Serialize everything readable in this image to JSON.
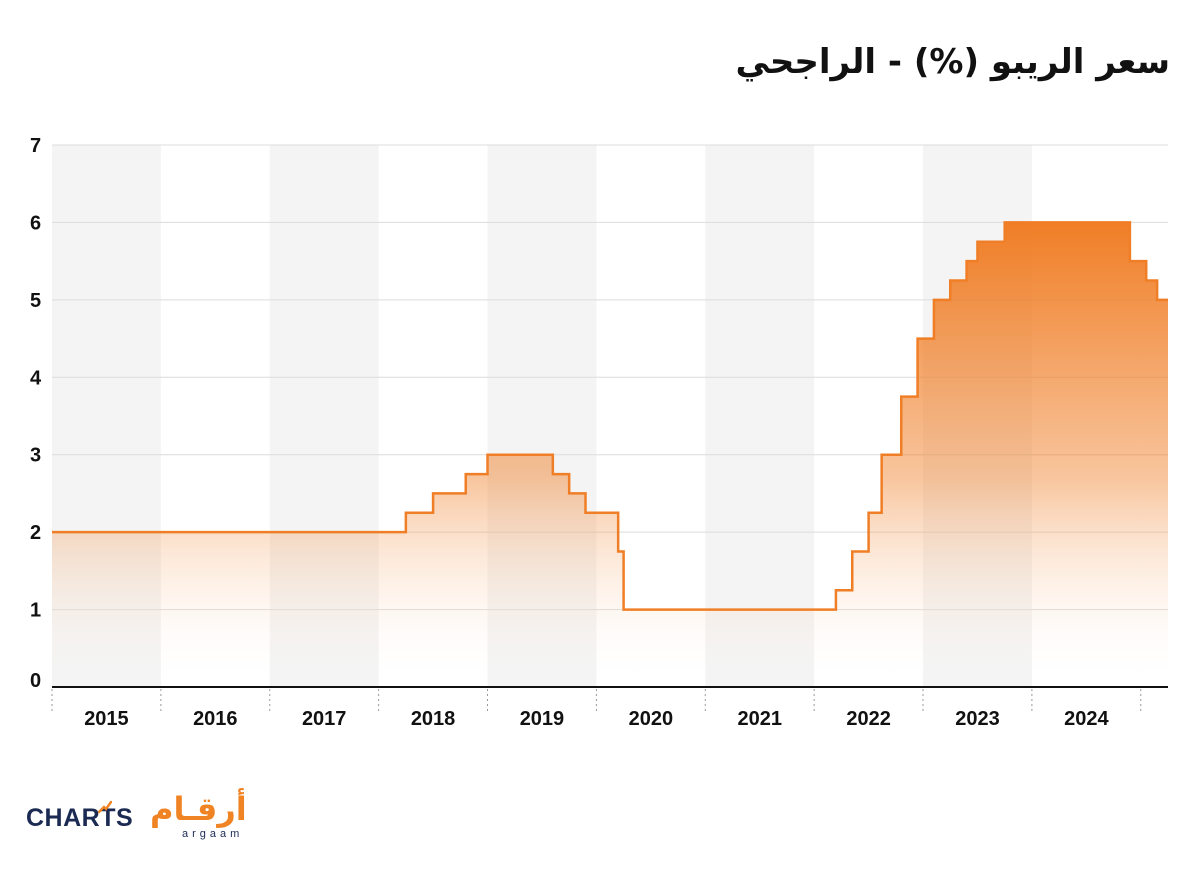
{
  "title": "سعر الريبو (%) - الراجحي",
  "logo": {
    "charts_text": "CHARTS",
    "arabic_text": "أرقـام",
    "sub_text": "argaam"
  },
  "colors": {
    "line": "#f07e26",
    "fill_top": "#f07e26",
    "fill_bottom": "#ffffff",
    "band": "#f4f4f4",
    "grid": "#dcdcdc",
    "axis": "#111111"
  },
  "chart_data": {
    "type": "area",
    "step": true,
    "ylim": [
      0,
      7
    ],
    "xlim": [
      2015.0,
      2025.25
    ],
    "yticks": [
      0,
      1,
      2,
      3,
      4,
      5,
      6,
      7
    ],
    "categories": [
      "2015",
      "2016",
      "2017",
      "2018",
      "2019",
      "2020",
      "2021",
      "2022",
      "2023",
      "2024"
    ],
    "grid": true,
    "series": [
      {
        "points": [
          [
            2015.0,
            2.0
          ],
          [
            2018.25,
            2.25
          ],
          [
            2018.5,
            2.5
          ],
          [
            2018.8,
            2.75
          ],
          [
            2019.0,
            3.0
          ],
          [
            2019.6,
            2.75
          ],
          [
            2019.75,
            2.5
          ],
          [
            2019.9,
            2.25
          ],
          [
            2020.2,
            1.75
          ],
          [
            2020.25,
            1.0
          ],
          [
            2022.2,
            1.25
          ],
          [
            2022.35,
            1.75
          ],
          [
            2022.5,
            2.25
          ],
          [
            2022.62,
            3.0
          ],
          [
            2022.8,
            3.75
          ],
          [
            2022.95,
            4.5
          ],
          [
            2023.1,
            5.0
          ],
          [
            2023.25,
            5.25
          ],
          [
            2023.4,
            5.5
          ],
          [
            2023.5,
            5.75
          ],
          [
            2023.75,
            6.0
          ],
          [
            2024.9,
            5.5
          ],
          [
            2025.05,
            5.25
          ],
          [
            2025.15,
            5.0
          ],
          [
            2025.25,
            5.0
          ]
        ]
      }
    ]
  }
}
